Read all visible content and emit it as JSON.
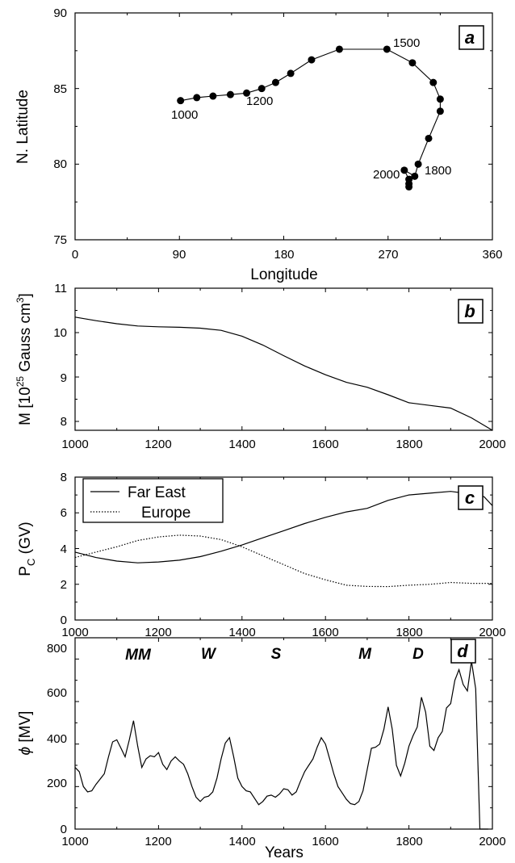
{
  "chart_data": [
    {
      "panel": "a",
      "type": "line",
      "panel_label": "a",
      "xlabel": "Longitude",
      "ylabel": "N. Latitude",
      "xlim": [
        0,
        360
      ],
      "ylim": [
        75,
        90
      ],
      "xticks": [
        "0",
        "90",
        "180",
        "270",
        "360"
      ],
      "yticks": [
        "75",
        "80",
        "85",
        "90"
      ],
      "markers": true,
      "points": [
        [
          91,
          84.2
        ],
        [
          105,
          84.4
        ],
        [
          119,
          84.5
        ],
        [
          134,
          84.6
        ],
        [
          148,
          84.7
        ],
        [
          161,
          85.0
        ],
        [
          173,
          85.4
        ],
        [
          186,
          86.0
        ],
        [
          204,
          86.9
        ],
        [
          228,
          87.6
        ],
        [
          269,
          87.6
        ],
        [
          291,
          86.7
        ],
        [
          309,
          85.4
        ],
        [
          315,
          84.3
        ],
        [
          315,
          83.5
        ],
        [
          305,
          81.7
        ],
        [
          296,
          80.0
        ],
        [
          293,
          79.2
        ],
        [
          284,
          79.6
        ],
        [
          288,
          79.0
        ],
        [
          288,
          78.7
        ],
        [
          288,
          78.5
        ]
      ],
      "annotations": [
        "1000",
        "1200",
        "1500",
        "1800",
        "2000"
      ]
    },
    {
      "panel": "b",
      "type": "line",
      "panel_label": "b",
      "xlabel": "",
      "ylabel": "M [10",
      "ylabel_sup": "25",
      "ylabel_tail": " Gauss cm",
      "ylabel_sup2": "3",
      "ylabel_close": "]",
      "xlim": [
        1000,
        2000
      ],
      "ylim": [
        7.8,
        11
      ],
      "xticks": [
        "1000",
        "1200",
        "1400",
        "1600",
        "1800",
        "2000"
      ],
      "yticks": [
        "8",
        "9",
        "10",
        "11"
      ],
      "x": [
        1000,
        1050,
        1100,
        1150,
        1200,
        1250,
        1300,
        1350,
        1400,
        1450,
        1500,
        1550,
        1600,
        1650,
        1700,
        1750,
        1800,
        1850,
        1900,
        1950,
        2000
      ],
      "y": [
        10.35,
        10.27,
        10.2,
        10.15,
        10.13,
        10.12,
        10.1,
        10.05,
        9.92,
        9.72,
        9.48,
        9.25,
        9.05,
        8.88,
        8.77,
        8.6,
        8.42,
        8.36,
        8.3,
        8.08,
        7.8
      ]
    },
    {
      "panel": "c",
      "type": "line",
      "panel_label": "c",
      "xlabel": "",
      "ylabel": "P",
      "ylabel_sub": "C",
      "ylabel_tail": " (GV)",
      "xlim": [
        1000,
        2000
      ],
      "ylim": [
        0,
        8
      ],
      "xticks": [
        "1000",
        "1200",
        "1400",
        "1600",
        "1800",
        "2000"
      ],
      "yticks": [
        "0",
        "2",
        "4",
        "6",
        "8"
      ],
      "legend": [
        "Far East",
        "Europe"
      ],
      "series": [
        {
          "name": "Far East",
          "style": "solid",
          "x": [
            1000,
            1050,
            1100,
            1150,
            1200,
            1250,
            1300,
            1350,
            1400,
            1450,
            1500,
            1550,
            1600,
            1650,
            1700,
            1750,
            1800,
            1850,
            1900,
            1950,
            1980,
            2000
          ],
          "y": [
            3.8,
            3.5,
            3.3,
            3.2,
            3.25,
            3.35,
            3.55,
            3.85,
            4.2,
            4.6,
            5.0,
            5.4,
            5.75,
            6.05,
            6.25,
            6.7,
            7.0,
            7.1,
            7.2,
            7.05,
            6.9,
            6.4
          ]
        },
        {
          "name": "Europe",
          "style": "dotted",
          "x": [
            1000,
            1050,
            1100,
            1150,
            1200,
            1250,
            1300,
            1350,
            1400,
            1450,
            1500,
            1550,
            1600,
            1650,
            1700,
            1750,
            1800,
            1850,
            1900,
            1950,
            2000
          ],
          "y": [
            3.5,
            3.8,
            4.1,
            4.45,
            4.65,
            4.75,
            4.7,
            4.5,
            4.1,
            3.6,
            3.1,
            2.6,
            2.25,
            1.95,
            1.88,
            1.87,
            1.95,
            2.0,
            2.1,
            2.05,
            2.05
          ]
        }
      ]
    },
    {
      "panel": "d",
      "type": "line",
      "panel_label": "d",
      "xlabel": "Years",
      "ylabel": "[MV]",
      "ylabel_symbol": "ϕ",
      "xlim": [
        1000,
        2000
      ],
      "ylim": [
        0,
        900
      ],
      "xticks": [
        "1000",
        "1200",
        "1400",
        "1600",
        "1800",
        "2000"
      ],
      "yticks": [
        "0",
        "200",
        "400",
        "600",
        "800"
      ],
      "eras": [
        "MM",
        "W",
        "S",
        "M",
        "D"
      ],
      "x": [
        1000,
        1010,
        1020,
        1030,
        1040,
        1050,
        1060,
        1070,
        1080,
        1090,
        1100,
        1110,
        1120,
        1130,
        1140,
        1150,
        1160,
        1170,
        1180,
        1190,
        1200,
        1210,
        1220,
        1230,
        1240,
        1250,
        1260,
        1270,
        1280,
        1290,
        1300,
        1310,
        1320,
        1330,
        1340,
        1350,
        1360,
        1370,
        1380,
        1390,
        1400,
        1410,
        1420,
        1430,
        1440,
        1450,
        1460,
        1470,
        1480,
        1490,
        1500,
        1510,
        1520,
        1530,
        1540,
        1550,
        1560,
        1570,
        1580,
        1590,
        1600,
        1610,
        1620,
        1630,
        1640,
        1650,
        1660,
        1670,
        1680,
        1690,
        1700,
        1710,
        1720,
        1730,
        1740,
        1750,
        1760,
        1770,
        1780,
        1790,
        1800,
        1810,
        1820,
        1830,
        1840,
        1850,
        1860,
        1870,
        1880,
        1890,
        1900,
        1910,
        1920,
        1930,
        1940,
        1950,
        1960,
        1970,
        1980,
        1990,
        2000
      ],
      "y": [
        290,
        270,
        200,
        175,
        180,
        210,
        235,
        260,
        340,
        410,
        420,
        380,
        340,
        420,
        510,
        390,
        290,
        330,
        345,
        340,
        360,
        305,
        280,
        320,
        340,
        320,
        305,
        260,
        200,
        150,
        130,
        150,
        155,
        175,
        240,
        330,
        405,
        430,
        340,
        240,
        200,
        180,
        175,
        145,
        115,
        130,
        155,
        160,
        150,
        165,
        190,
        185,
        160,
        175,
        225,
        270,
        300,
        330,
        385,
        430,
        400,
        330,
        260,
        200,
        170,
        140,
        120,
        115,
        130,
        180,
        280,
        380,
        385,
        400,
        470,
        575,
        470,
        300,
        250,
        310,
        390,
        440,
        480,
        620,
        550,
        390,
        370,
        430,
        460,
        570,
        590,
        700,
        750,
        680,
        650,
        790,
        660,
        0,
        0,
        0,
        0
      ]
    }
  ]
}
